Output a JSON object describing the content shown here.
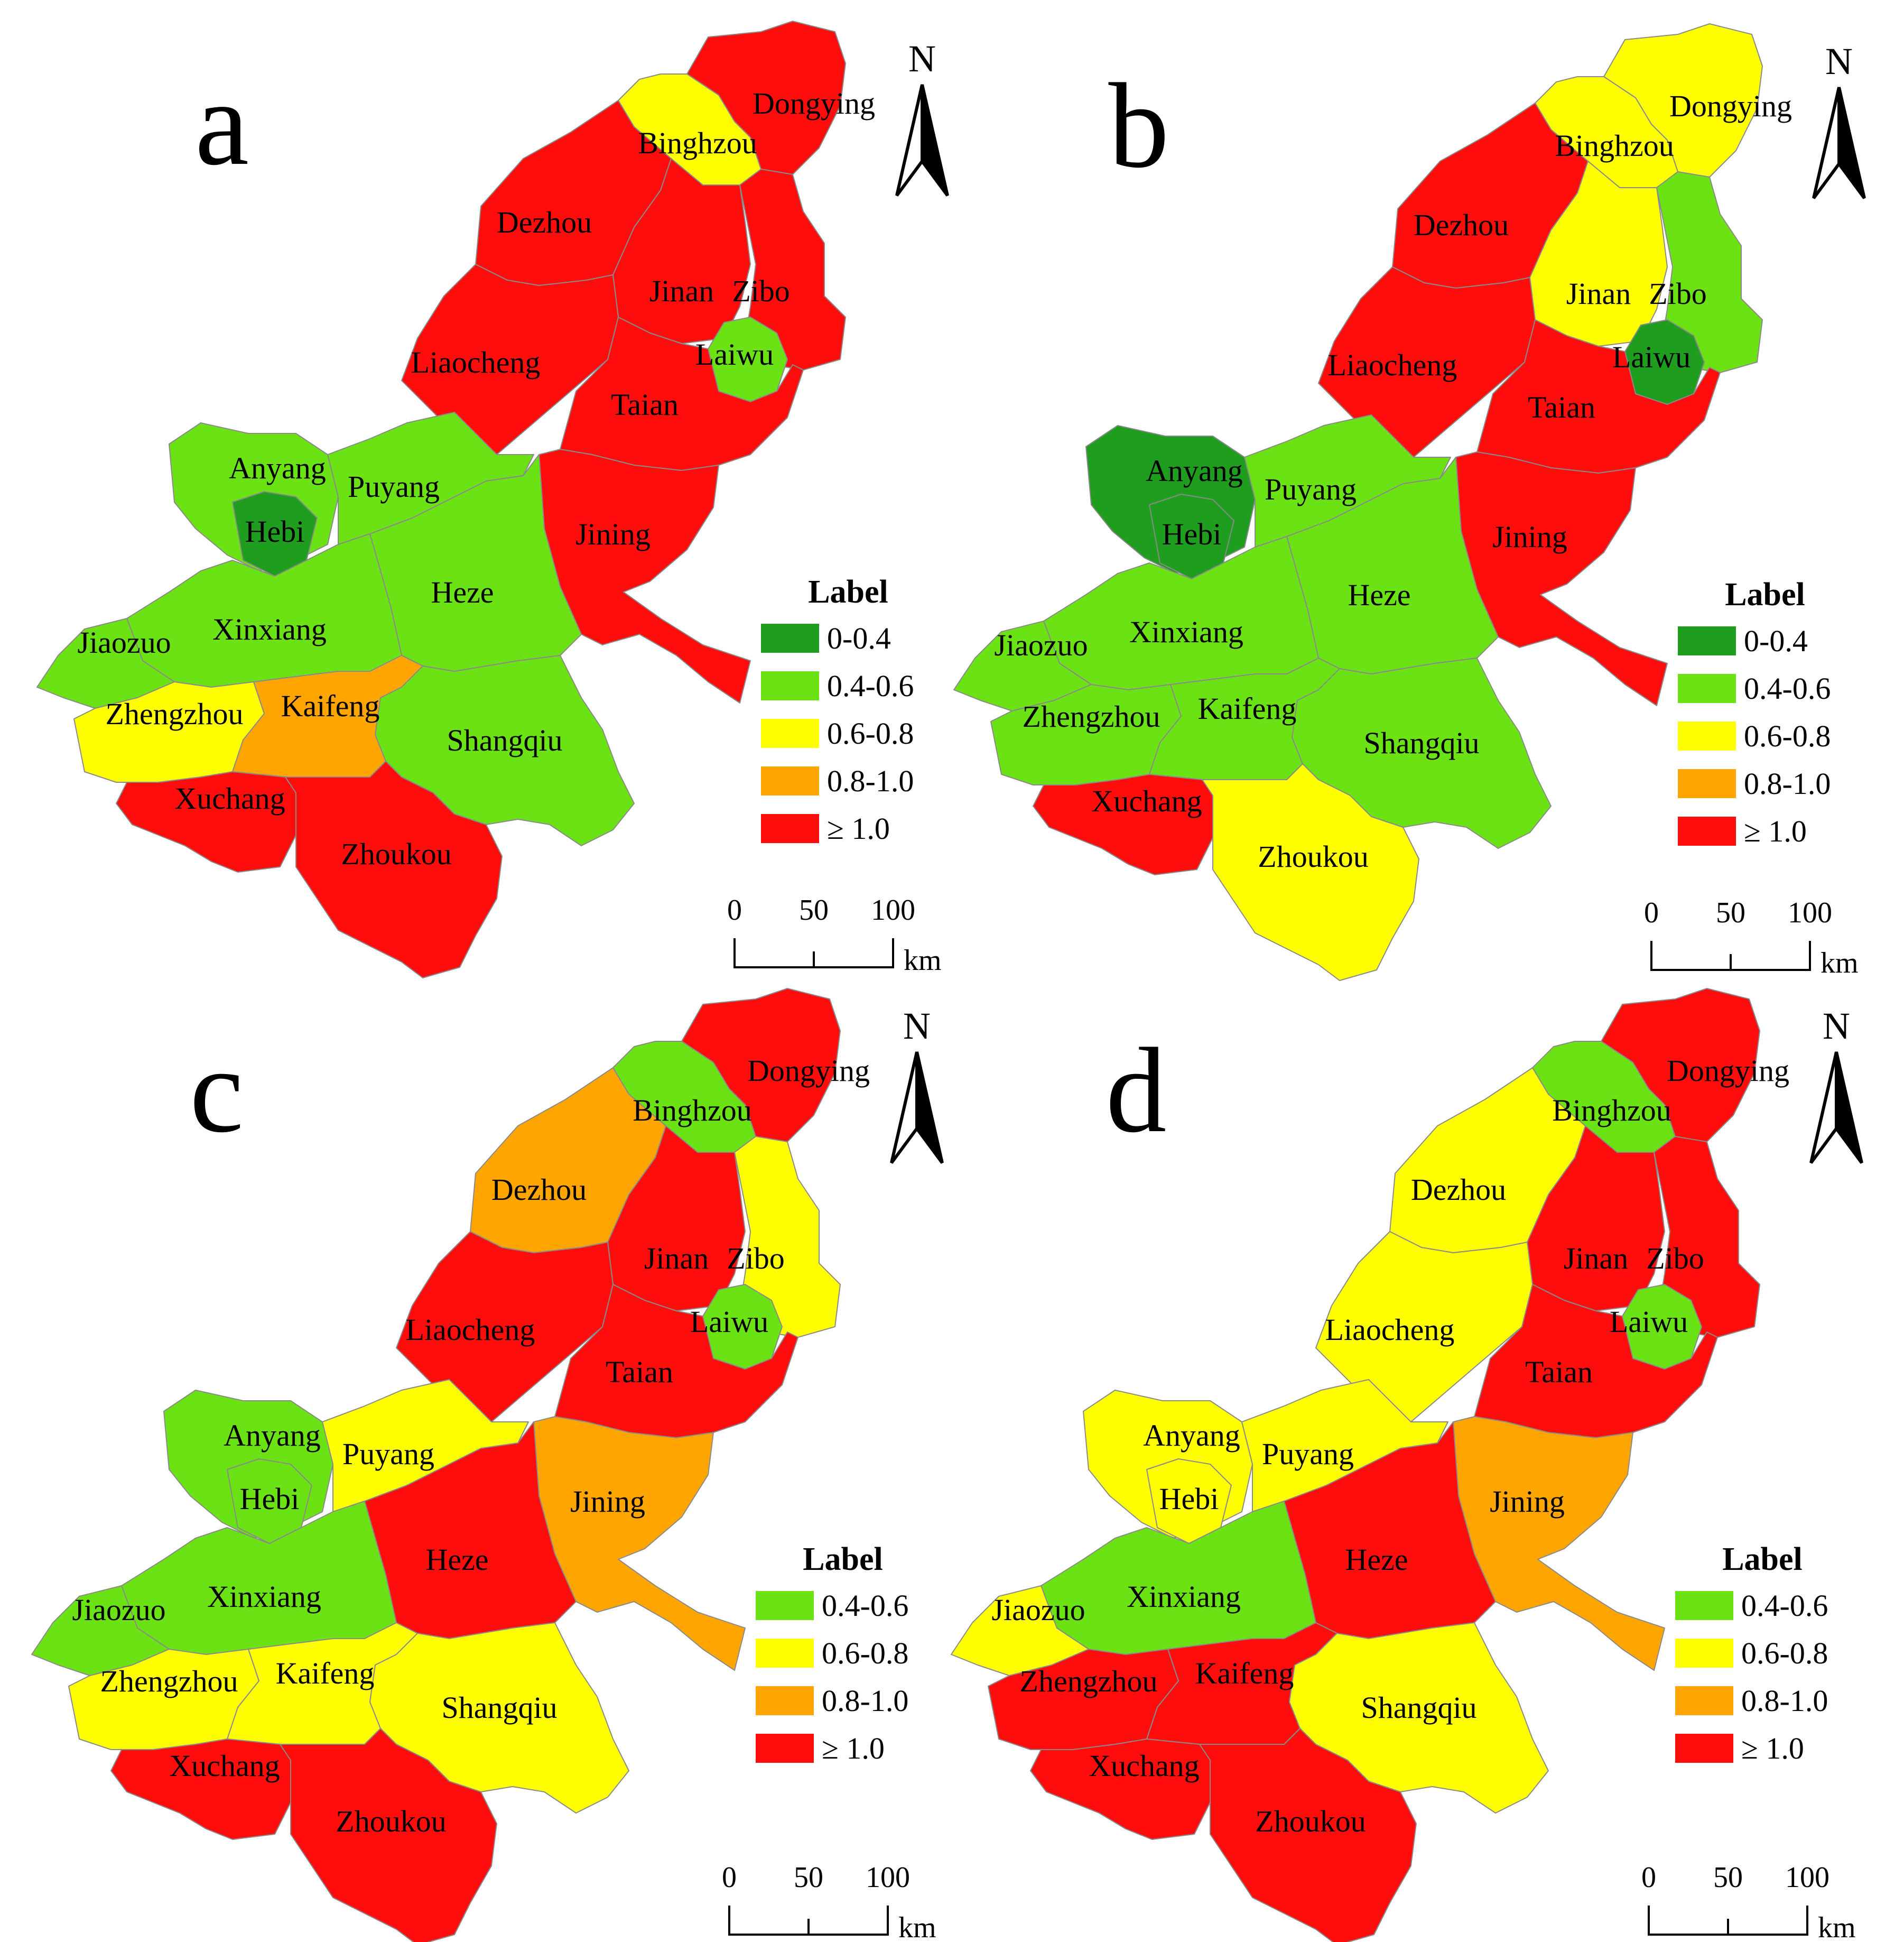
{
  "legend_title": "Label",
  "colors": {
    "0-0.4": "#1e9d1e",
    "0.4-0.6": "#6be213",
    "0.6-0.8": "#ffff00",
    "0.8-1.0": "#ffa500",
    "≥ 1.0": "#ff0d0d"
  },
  "scale_bar": {
    "ticks": [
      "0",
      "50",
      "100"
    ],
    "unit": "km"
  },
  "north_label": "N",
  "panels": [
    {
      "letter": "a",
      "legend": [
        "0-0.4",
        "0.4-0.6",
        "0.6-0.8",
        "0.8-1.0",
        "≥ 1.0"
      ],
      "cities": {
        "Dongying": "≥ 1.0",
        "Binghzou": "0.6-0.8",
        "Dezhou": "≥ 1.0",
        "Jinan": "≥ 1.0",
        "Zibo": "≥ 1.0",
        "Liaocheng": "≥ 1.0",
        "Laiwu": "0.4-0.6",
        "Taian": "≥ 1.0",
        "Anyang": "0.4-0.6",
        "Puyang": "0.4-0.6",
        "Hebi": "0-0.4",
        "Jining": "≥ 1.0",
        "Heze": "0.4-0.6",
        "Xinxiang": "0.4-0.6",
        "Jiaozuo": "0.4-0.6",
        "Kaifeng": "0.8-1.0",
        "Zhengzhou": "0.6-0.8",
        "Shangqiu": "0.4-0.6",
        "Xuchang": "≥ 1.0",
        "Zhoukou": "≥ 1.0"
      }
    },
    {
      "letter": "b",
      "legend": [
        "0-0.4",
        "0.4-0.6",
        "0.6-0.8",
        "0.8-1.0",
        "≥ 1.0"
      ],
      "cities": {
        "Dongying": "0.6-0.8",
        "Binghzou": "0.6-0.8",
        "Dezhou": "≥ 1.0",
        "Jinan": "0.6-0.8",
        "Zibo": "0.4-0.6",
        "Liaocheng": "≥ 1.0",
        "Laiwu": "0-0.4",
        "Taian": "≥ 1.0",
        "Anyang": "0-0.4",
        "Puyang": "0.4-0.6",
        "Hebi": "0-0.4",
        "Jining": "≥ 1.0",
        "Heze": "0.4-0.6",
        "Xinxiang": "0.4-0.6",
        "Jiaozuo": "0.4-0.6",
        "Kaifeng": "0.4-0.6",
        "Zhengzhou": "0.4-0.6",
        "Shangqiu": "0.4-0.6",
        "Xuchang": "≥ 1.0",
        "Zhoukou": "0.6-0.8"
      }
    },
    {
      "letter": "c",
      "legend": [
        "0.4-0.6",
        "0.6-0.8",
        "0.8-1.0",
        "≥ 1.0"
      ],
      "cities": {
        "Dongying": "≥ 1.0",
        "Binghzou": "0.4-0.6",
        "Dezhou": "0.8-1.0",
        "Jinan": "≥ 1.0",
        "Zibo": "0.6-0.8",
        "Liaocheng": "≥ 1.0",
        "Laiwu": "0.4-0.6",
        "Taian": "≥ 1.0",
        "Anyang": "0.4-0.6",
        "Puyang": "0.6-0.8",
        "Hebi": "0.4-0.6",
        "Jining": "0.8-1.0",
        "Heze": "≥ 1.0",
        "Xinxiang": "0.4-0.6",
        "Jiaozuo": "0.4-0.6",
        "Kaifeng": "0.6-0.8",
        "Zhengzhou": "0.6-0.8",
        "Shangqiu": "0.6-0.8",
        "Xuchang": "≥ 1.0",
        "Zhoukou": "≥ 1.0"
      }
    },
    {
      "letter": "d",
      "legend": [
        "0.4-0.6",
        "0.6-0.8",
        "0.8-1.0",
        "≥ 1.0"
      ],
      "cities": {
        "Dongying": "≥ 1.0",
        "Binghzou": "0.4-0.6",
        "Dezhou": "0.6-0.8",
        "Jinan": "≥ 1.0",
        "Zibo": "≥ 1.0",
        "Liaocheng": "0.6-0.8",
        "Laiwu": "0.4-0.6",
        "Taian": "≥ 1.0",
        "Anyang": "0.6-0.8",
        "Puyang": "0.6-0.8",
        "Hebi": "0.6-0.8",
        "Jining": "0.8-1.0",
        "Heze": "≥ 1.0",
        "Xinxiang": "0.4-0.6",
        "Jiaozuo": "0.6-0.8",
        "Kaifeng": "≥ 1.0",
        "Zhengzhou": "≥ 1.0",
        "Shangqiu": "0.6-0.8",
        "Xuchang": "≥ 1.0",
        "Zhoukou": "≥ 1.0"
      }
    }
  ]
}
